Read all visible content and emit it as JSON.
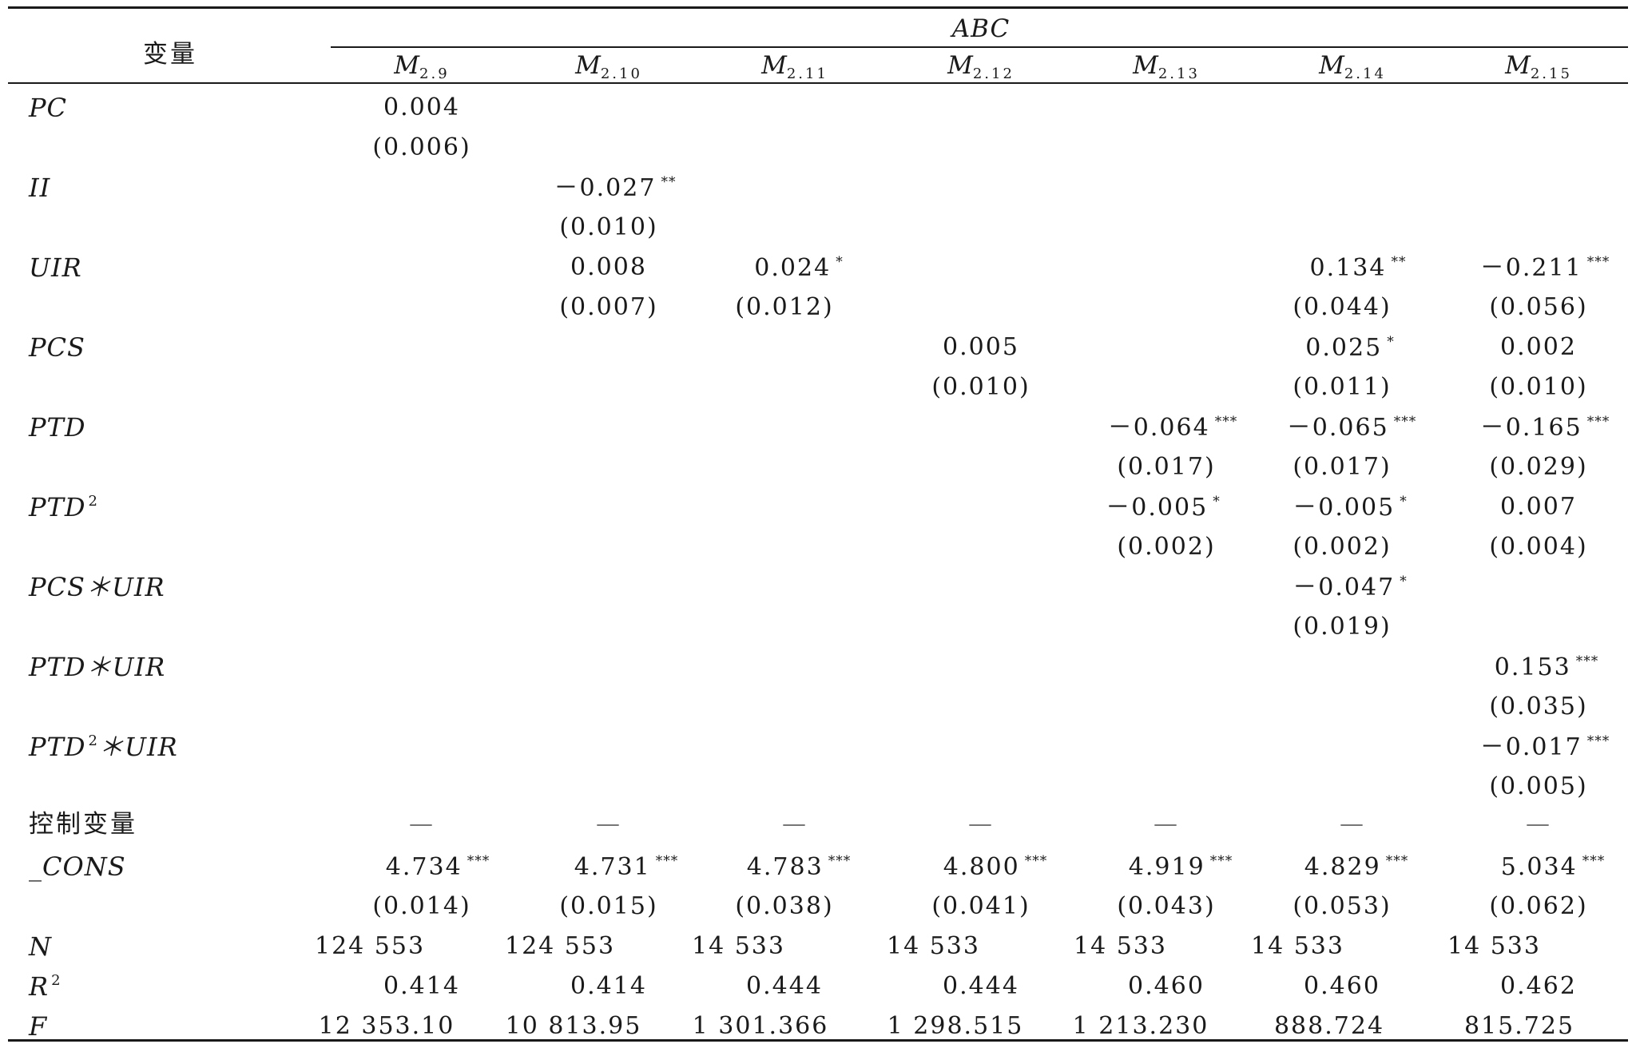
{
  "table": {
    "stub_header": "变量",
    "group_header": "ABC",
    "columns": [
      {
        "main": "M",
        "sub": "2.9"
      },
      {
        "main": "M",
        "sub": "2.10"
      },
      {
        "main": "M",
        "sub": "2.11"
      },
      {
        "main": "M",
        "sub": "2.12"
      },
      {
        "main": "M",
        "sub": "2.13"
      },
      {
        "main": "M",
        "sub": "2.14"
      },
      {
        "main": "M",
        "sub": "2.15"
      }
    ],
    "row_labels": {
      "pc": "PC",
      "ii": "II",
      "uir": "UIR",
      "pcs": "PCS",
      "ptd": "PTD",
      "ptd2": {
        "base": "PTD",
        "sup": "2"
      },
      "pcs_uir": "PCS＊UIR",
      "ptd_uir": "PTD＊UIR",
      "ptd2_uir": {
        "base": "PTD",
        "sup": "2",
        "rest": "＊UIR"
      },
      "controls": "控制变量",
      "cons": "_CONS",
      "n": "N",
      "r2": {
        "base": "R",
        "sup": "2"
      },
      "f": "F"
    },
    "cells": {
      "pc_coef": {
        "col1": "0.004"
      },
      "pc_se": {
        "col1": "(0.006)"
      },
      "ii_coef": {
        "col2": "－0.027",
        "col2_star": "**"
      },
      "ii_se": {
        "col2": "(0.010)"
      },
      "uir_coef": {
        "col2": "0.008",
        "col3": "0.024",
        "col3_star": "*",
        "col6": "0.134",
        "col6_star": "**",
        "col7": "－0.211",
        "col7_star": "***"
      },
      "uir_se": {
        "col2": "(0.007)",
        "col3": "(0.012)",
        "col6": "(0.044)",
        "col7": "(0.056)"
      },
      "pcs_coef": {
        "col4": "0.005",
        "col6": "0.025",
        "col6_star": "*",
        "col7": "0.002"
      },
      "pcs_se": {
        "col4": "(0.010)",
        "col6": "(0.011)",
        "col7": "(0.010)"
      },
      "ptd_coef": {
        "col5": "－0.064",
        "col5_star": "***",
        "col6": "－0.065",
        "col6_star": "***",
        "col7": "－0.165",
        "col7_star": "***"
      },
      "ptd_se": {
        "col5": "(0.017)",
        "col6": "(0.017)",
        "col7": "(0.029)"
      },
      "ptd2_coef": {
        "col5": "－0.005",
        "col5_star": "*",
        "col6": "－0.005",
        "col6_star": "*",
        "col7": "0.007"
      },
      "ptd2_se": {
        "col5": "(0.002)",
        "col6": "(0.002)",
        "col7": "(0.004)"
      },
      "pcs_uir_coef": {
        "col6": "－0.047",
        "col6_star": "*"
      },
      "pcs_uir_se": {
        "col6": "(0.019)"
      },
      "ptd_uir_coef": {
        "col7": "0.153",
        "col7_star": "***"
      },
      "ptd_uir_se": {
        "col7": "(0.035)"
      },
      "ptd2_uir_coef": {
        "col7": "－0.017",
        "col7_star": "***"
      },
      "ptd2_uir_se": {
        "col7": "(0.005)"
      },
      "controls_mark": "—",
      "cons_coef": [
        "4.734",
        "4.731",
        "4.783",
        "4.800",
        "4.919",
        "4.829",
        "5.034"
      ],
      "cons_star": "***",
      "cons_se": [
        "(0.014)",
        "(0.015)",
        "(0.038)",
        "(0.041)",
        "(0.043)",
        "(0.053)",
        "(0.062)"
      ],
      "n": [
        "124 553",
        "124 553",
        "14 533",
        "14 533",
        "14 533",
        "14 533",
        "14 533"
      ],
      "r2": [
        "0.414",
        "0.414",
        "0.444",
        "0.444",
        "0.460",
        "0.460",
        "0.462"
      ],
      "f": [
        "12 353.10",
        "10 813.95",
        "1 301.366",
        "1 298.515",
        "1 213.230",
        "888.724",
        "815.725"
      ]
    }
  }
}
